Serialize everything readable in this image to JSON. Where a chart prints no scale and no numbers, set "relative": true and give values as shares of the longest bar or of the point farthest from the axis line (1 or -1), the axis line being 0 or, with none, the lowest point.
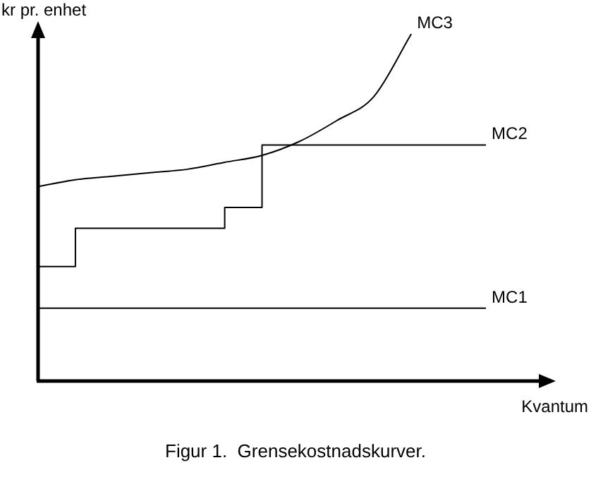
{
  "chart_data": {
    "type": "line",
    "relative": true,
    "xlabel": "Kvantum",
    "ylabel": "kr pr. enhet",
    "annotations": [
      "Figur 1.  Grensekostnadskurver."
    ],
    "categories": [
      null,
      null,
      null,
      null,
      null,
      null,
      null,
      null,
      null,
      null,
      null,
      null,
      null,
      null
    ],
    "series": [
      {
        "name": "MC3",
        "color": "#000000",
        "values": [
          0.56,
          0.58,
          0.59,
          0.6,
          0.61,
          0.63,
          0.65,
          0.69,
          0.75,
          0.82,
          1,
          null,
          null,
          null
        ]
      },
      {
        "name": "MC2",
        "type": "step",
        "color": "#000000",
        "values": [
          0.33,
          0.33,
          0.44,
          0.44,
          0.44,
          0.44,
          0.5,
          0.68,
          0.68,
          0.68,
          0.68,
          0.68,
          0.68,
          null
        ]
      },
      {
        "name": "MC1",
        "color": "#000000",
        "values": [
          0.21,
          0.21,
          0.21,
          0.21,
          0.21,
          0.21,
          0.21,
          0.21,
          0.21,
          0.21,
          0.21,
          0.21,
          0.21,
          null
        ]
      }
    ]
  }
}
